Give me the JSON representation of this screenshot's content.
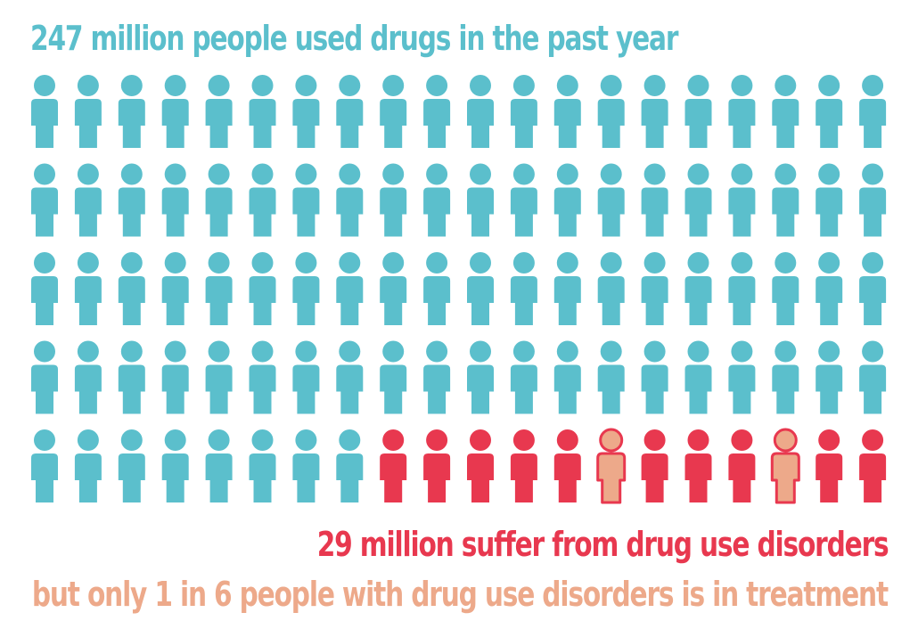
{
  "title": "247 million people used drugs in the past year",
  "annotations": {
    "disorders": "29 million suffer from drug use disorders",
    "treatment": "but only 1 in 6 people with drug use disorders is in treatment"
  },
  "colors": {
    "used_drugs": "#5bbfcc",
    "disorders": "#e8384f",
    "in_treatment": "#eda98a"
  },
  "chart_data": {
    "type": "pictogram",
    "title": "247 million people used drugs in the past year",
    "grid": {
      "rows": 5,
      "columns": 20
    },
    "series": [
      {
        "name": "247 million people used drugs in the past year",
        "value": 247,
        "icon_count": 88,
        "color": "#5bbfcc"
      },
      {
        "name": "29 million suffer from drug use disorders",
        "value": 29,
        "icon_count": 12,
        "color": "#e8384f"
      },
      {
        "name": "but only 1 in 6 people with drug use disorders is in treatment",
        "ratio": "1 in 6",
        "icon_count": 2,
        "color": "#eda98a"
      }
    ],
    "icons": {
      "total": 100,
      "order": "row-major",
      "disorder_start_index": 88,
      "treatment_indices": [
        93,
        97
      ]
    }
  }
}
